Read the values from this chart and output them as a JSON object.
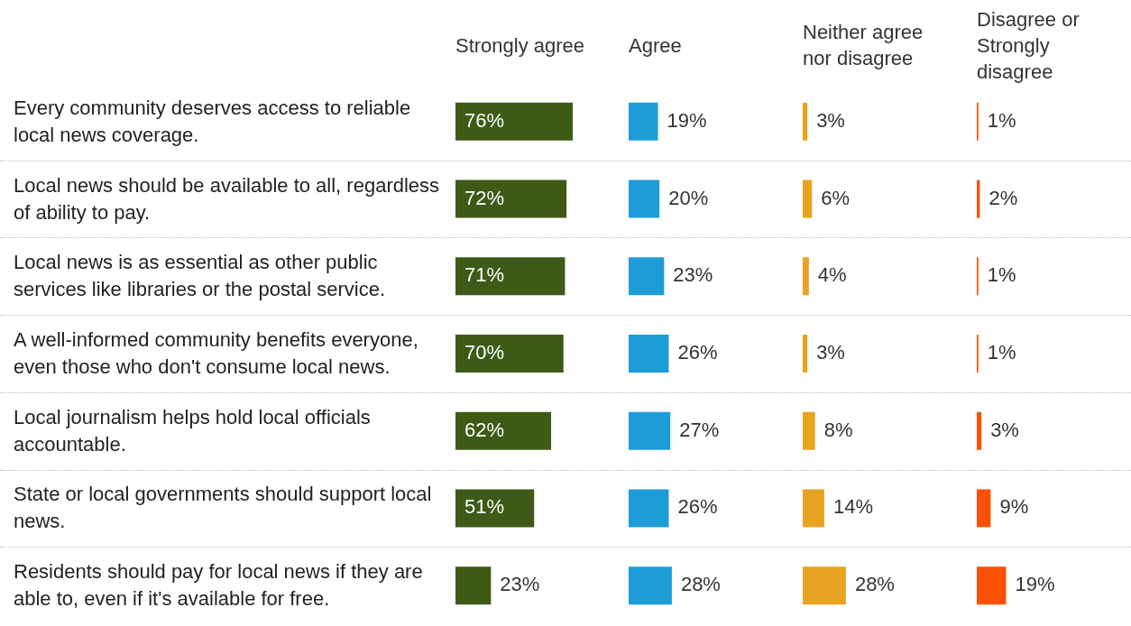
{
  "chart_data": [
    {
      "type": "bar",
      "orientation": "horizontal",
      "tick_labels": "y",
      "title": "Strongly agree",
      "categories": [
        "Every community deserves access to reliable local news coverage.",
        "Local news should be available to all, regardless of ability to pay.",
        "Local news is as essential as other public services like libraries or the postal service.",
        "A well-informed community benefits everyone, even those who don't consume local news.",
        "Local journalism helps hold local officials accountable.",
        "State or local governments should support local news.",
        "Residents should pay for local news if they are able to, even if it's available for free."
      ],
      "color": "#3d5a17",
      "values": [
        76,
        72,
        71,
        70,
        62,
        51,
        23
      ],
      "value_labels": [
        "76%",
        "72%",
        "71%",
        "70%",
        "62%",
        "51%",
        "23%"
      ]
    },
    {
      "type": "bar",
      "orientation": "horizontal",
      "tick_labels": false,
      "title": "Agree",
      "categories": [
        null,
        null,
        null,
        null,
        null,
        null,
        null
      ],
      "color": "#1e9cd7",
      "values": [
        19,
        20,
        23,
        26,
        27,
        26,
        28
      ],
      "value_labels": [
        "19%",
        "20%",
        "23%",
        "26%",
        "27%",
        "26%",
        "28%"
      ]
    },
    {
      "type": "bar",
      "orientation": "horizontal",
      "tick_labels": false,
      "title": "Neither agree nor disagree",
      "categories": [
        null,
        null,
        null,
        null,
        null,
        null,
        null
      ],
      "color": "#e8a321",
      "values": [
        3,
        6,
        4,
        3,
        8,
        14,
        28
      ],
      "value_labels": [
        "3%",
        "6%",
        "4%",
        "3%",
        "8%",
        "14%",
        "28%"
      ]
    },
    {
      "type": "bar",
      "orientation": "horizontal",
      "tick_labels": false,
      "title": "Disagree or Strongly disagree",
      "categories": [
        null,
        null,
        null,
        null,
        null,
        null,
        null
      ],
      "color": "#fc5104",
      "values": [
        1,
        2,
        1,
        1,
        3,
        9,
        19
      ],
      "value_labels": [
        "1%",
        "2%",
        "1%",
        "1%",
        "3%",
        "9%",
        "19%"
      ]
    }
  ]
}
